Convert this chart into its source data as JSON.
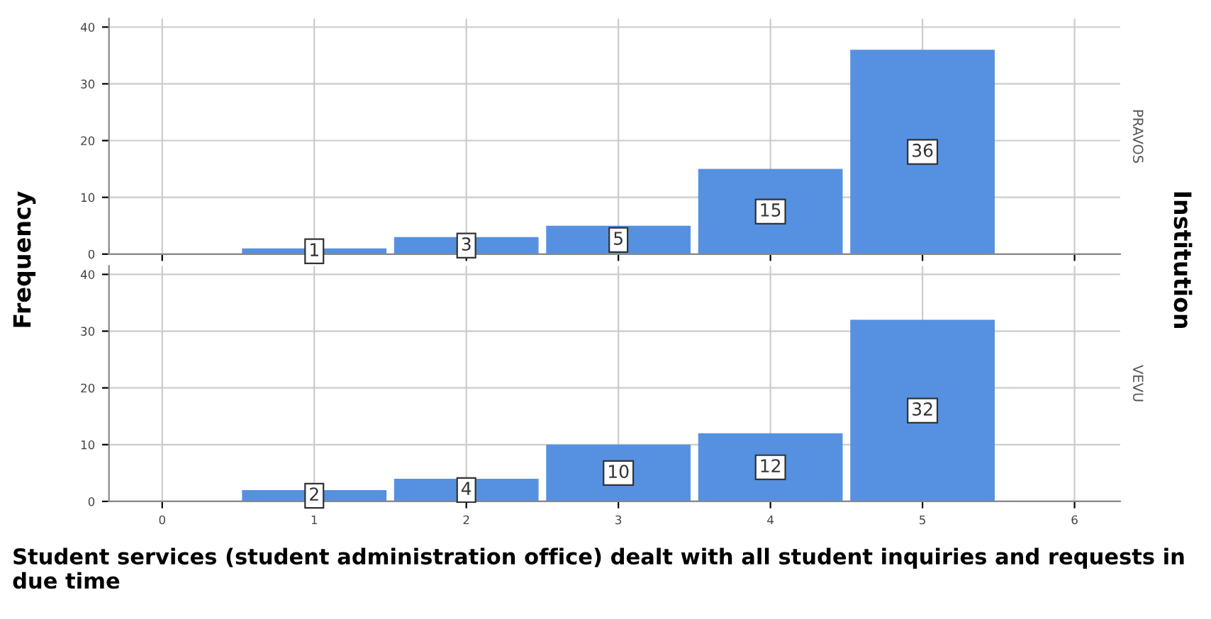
{
  "chart_data": [
    {
      "type": "bar",
      "ylabel": "Frequency",
      "y2label": "PRAVOS",
      "annotations": [
        "Institution"
      ],
      "x": [
        1,
        2,
        3,
        4,
        5
      ],
      "values": [
        1,
        3,
        5,
        15,
        36
      ],
      "color": "#5591e0",
      "xlim": [
        -0.35,
        6.3
      ],
      "xticks": [
        0,
        1,
        2,
        3,
        4,
        5,
        6
      ],
      "ylim": [
        0,
        41.5
      ],
      "yticks": [
        0,
        10,
        20,
        30,
        40
      ],
      "grid": true,
      "data_labels": true,
      "tick_labels": "y"
    },
    {
      "type": "bar",
      "y2label": "VEVU",
      "xlabel": "Student services (student administration office) dealt with all student inquiries and requests in due time",
      "x": [
        1,
        2,
        3,
        4,
        5
      ],
      "values": [
        2,
        4,
        10,
        12,
        32
      ],
      "color": "#5591e0",
      "xlim": [
        -0.35,
        6.3
      ],
      "xticks": [
        0,
        1,
        2,
        3,
        4,
        5,
        6
      ],
      "ylim": [
        0,
        41.5
      ],
      "yticks": [
        0,
        10,
        20,
        30,
        40
      ],
      "grid": true,
      "data_labels": true
    }
  ]
}
